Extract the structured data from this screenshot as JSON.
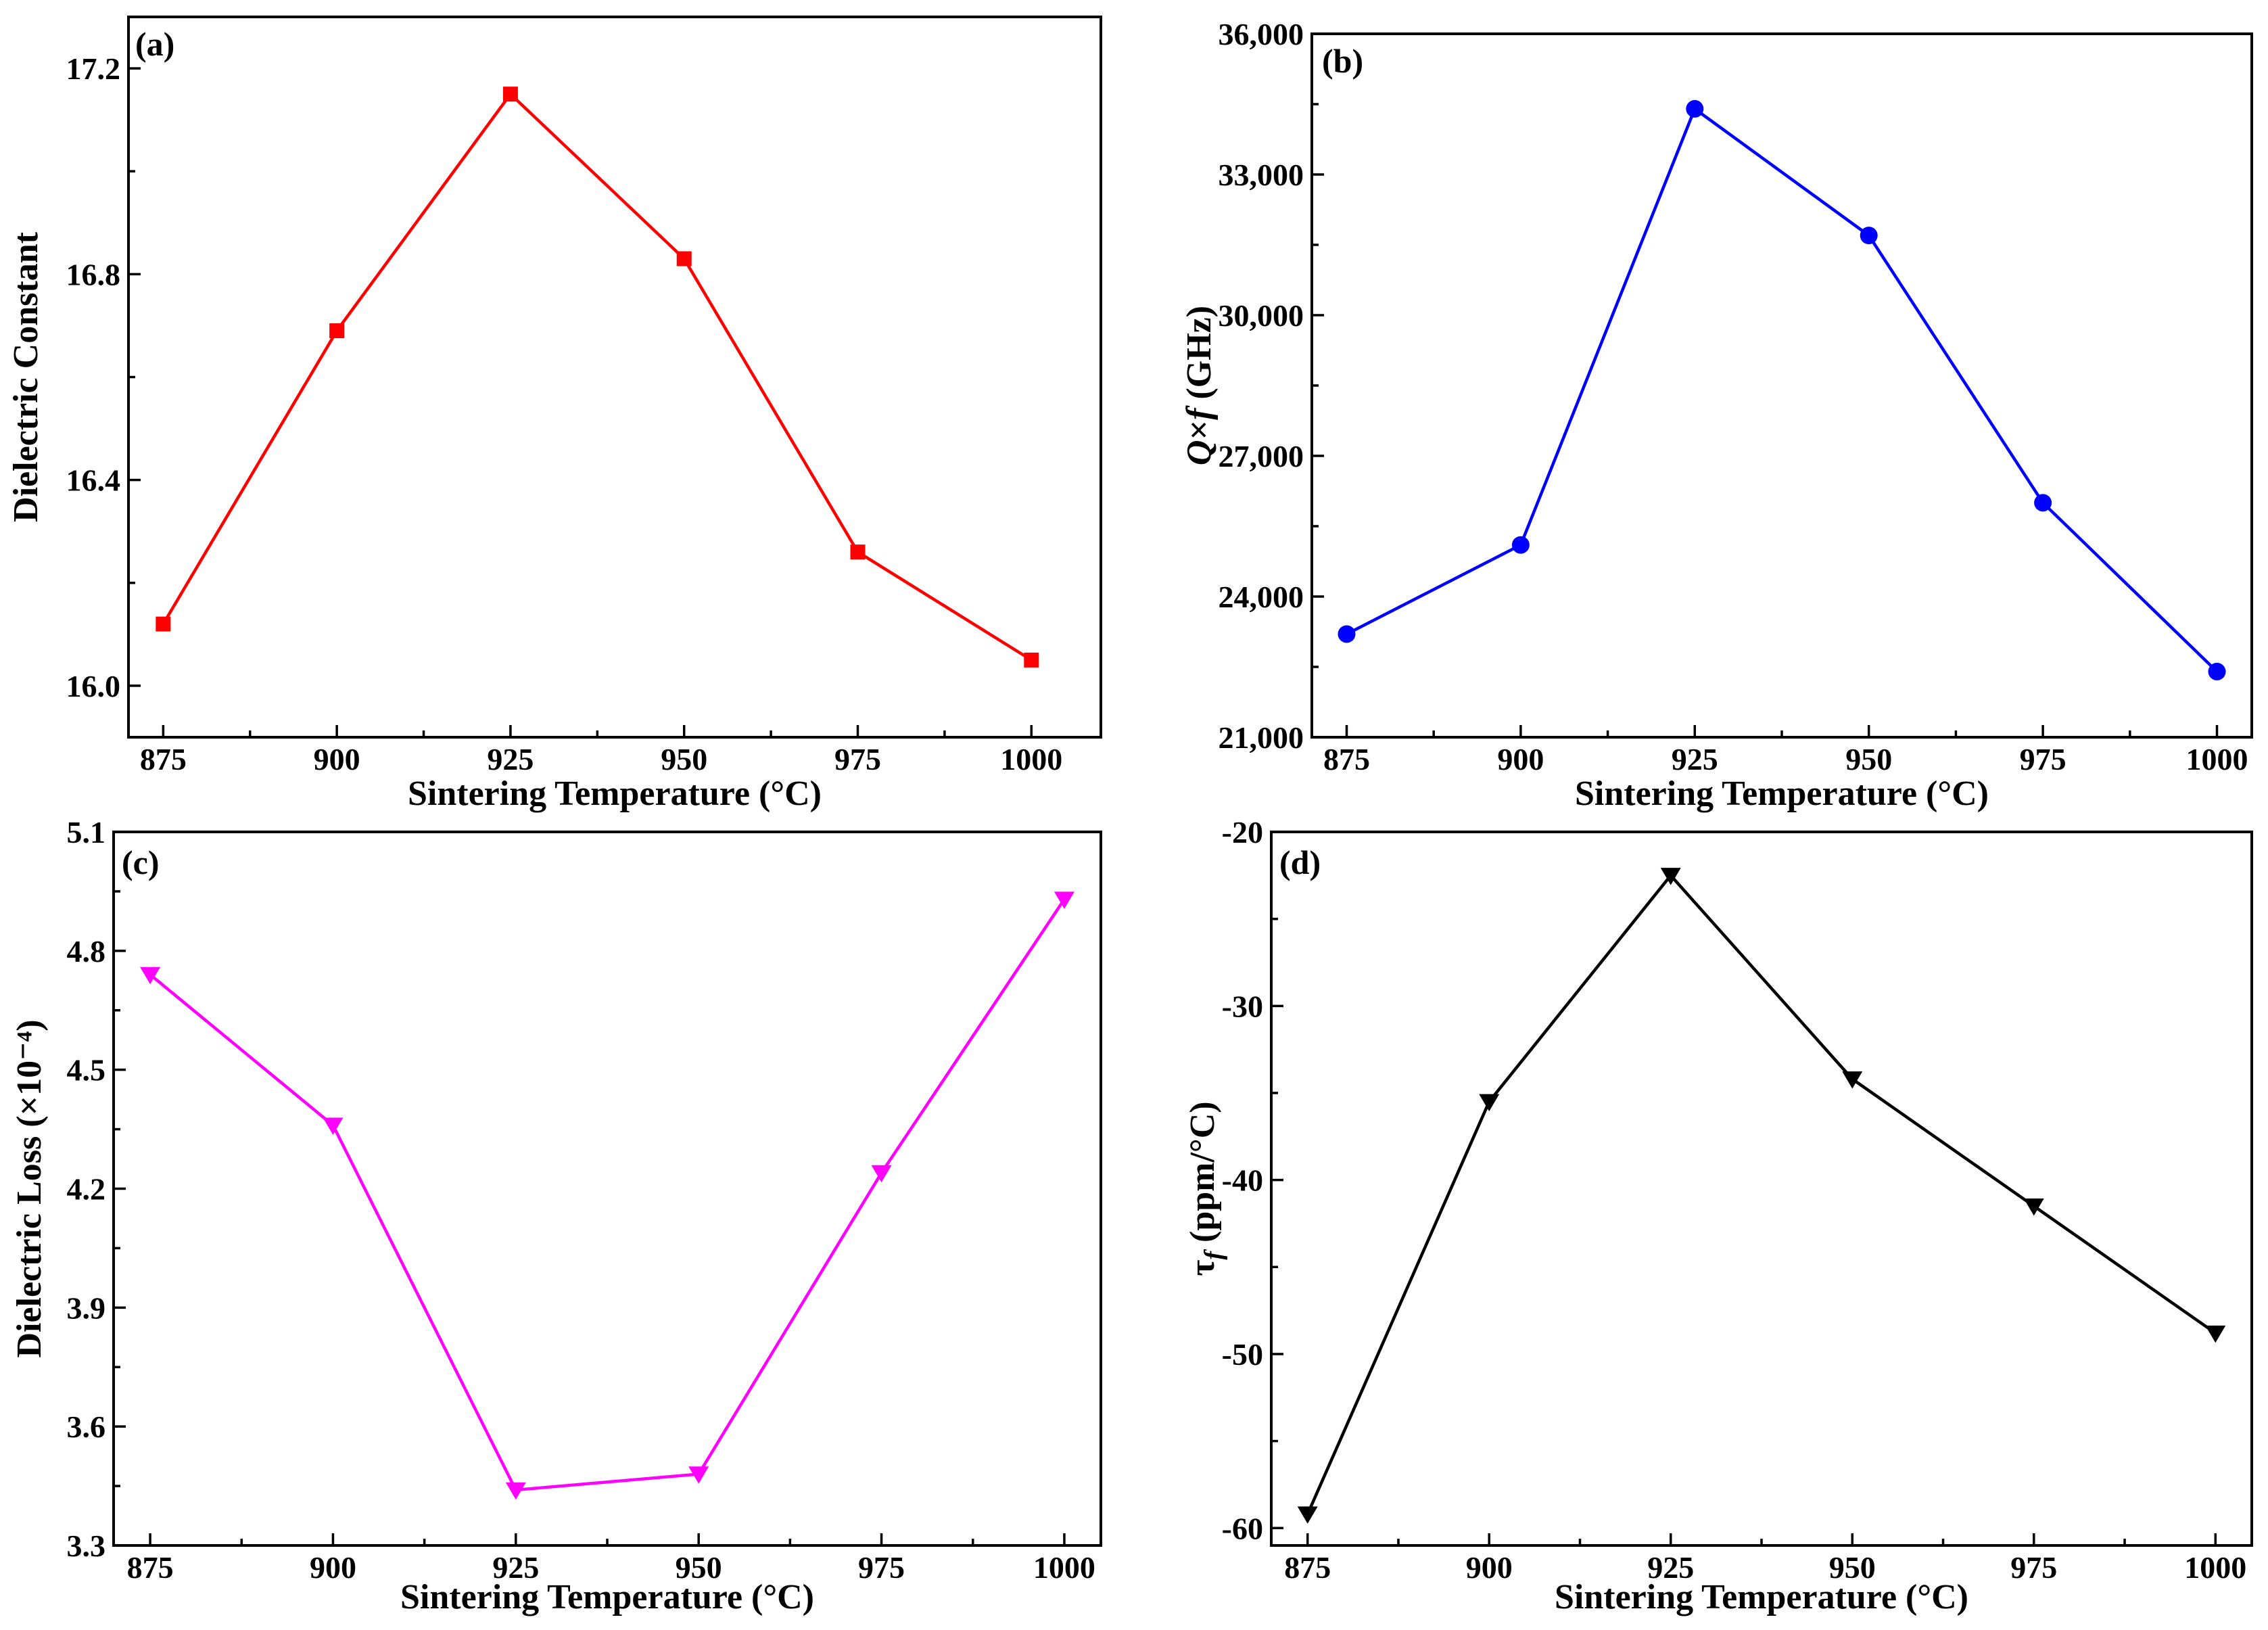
{
  "chart_data": [
    {
      "type": "line",
      "panel_label": "(a)",
      "title": "",
      "xlabel": "Sintering Temperature (°C)",
      "ylabel": "Dielectric Constant",
      "x": [
        875,
        900,
        925,
        950,
        975,
        1000
      ],
      "series": [
        {
          "name": "Dielectric Constant",
          "values": [
            16.12,
            16.69,
            17.15,
            16.83,
            16.26,
            16.05
          ],
          "color": "#ff0000",
          "marker": "square"
        }
      ],
      "xlim": [
        870,
        1010
      ],
      "ylim": [
        15.9,
        17.3
      ],
      "xticks": [
        875,
        900,
        925,
        950,
        975,
        1000
      ],
      "xtick_labels": [
        "875",
        "900",
        "925",
        "950",
        "975",
        "1000"
      ],
      "yticks": [
        16.0,
        16.4,
        16.8,
        17.2
      ],
      "ytick_labels": [
        "16.0",
        "16.4",
        "16.8",
        "17.2"
      ]
    },
    {
      "type": "line",
      "panel_label": "(b)",
      "title": "",
      "xlabel": "Sintering Temperature (°C)",
      "ylabel": "Q×f (GHz)",
      "x": [
        875,
        900,
        925,
        950,
        975,
        1000
      ],
      "series": [
        {
          "name": "Q×f",
          "values": [
            23200,
            25100,
            34400,
            31700,
            26000,
            22400
          ],
          "color": "#0000ff",
          "marker": "circle"
        }
      ],
      "xlim": [
        870,
        1005
      ],
      "ylim": [
        21000,
        36000
      ],
      "xticks": [
        875,
        900,
        925,
        950,
        975,
        1000
      ],
      "xtick_labels": [
        "875",
        "900",
        "925",
        "950",
        "975",
        "1000"
      ],
      "yticks": [
        21000,
        24000,
        27000,
        30000,
        33000,
        36000
      ],
      "ytick_labels": [
        "21,000",
        "24,000",
        "27,000",
        "30,000",
        "33,000",
        "36,000"
      ]
    },
    {
      "type": "line",
      "panel_label": "(c)",
      "title": "",
      "xlabel": "Sintering Temperature (°C)",
      "ylabel": "Dielectric Loss (×10⁻⁴)",
      "x": [
        875,
        900,
        925,
        950,
        975,
        1000
      ],
      "series": [
        {
          "name": "Dielectric Loss",
          "values": [
            4.74,
            4.36,
            3.44,
            3.48,
            4.24,
            4.93
          ],
          "color": "#ff00ff",
          "marker": "triangle-down"
        }
      ],
      "xlim": [
        870,
        1005
      ],
      "ylim": [
        3.3,
        5.1
      ],
      "xticks": [
        875,
        900,
        925,
        950,
        975,
        1000
      ],
      "xtick_labels": [
        "875",
        "900",
        "925",
        "950",
        "975",
        "1000"
      ],
      "yticks": [
        3.3,
        3.6,
        3.9,
        4.2,
        4.5,
        4.8,
        5.1
      ],
      "ytick_labels": [
        "3.3",
        "3.6",
        "3.9",
        "4.2",
        "4.5",
        "4.8",
        "5.1"
      ]
    },
    {
      "type": "line",
      "panel_label": "(d)",
      "title": "",
      "xlabel": "Sintering Temperature (°C)",
      "ylabel": "τf (ppm/°C)",
      "x": [
        875,
        900,
        925,
        950,
        975,
        1000
      ],
      "series": [
        {
          "name": "τf",
          "values": [
            -59.2,
            -35.5,
            -22.5,
            -34.2,
            -41.5,
            -48.8
          ],
          "color": "#000000",
          "marker": "triangle-down"
        }
      ],
      "xlim": [
        870,
        1005
      ],
      "ylim": [
        -61,
        -20
      ],
      "xticks": [
        875,
        900,
        925,
        950,
        975,
        1000
      ],
      "xtick_labels": [
        "875",
        "900",
        "925",
        "950",
        "975",
        "1000"
      ],
      "yticks": [
        -60,
        -50,
        -40,
        -30,
        -20
      ],
      "ytick_labels": [
        "-60",
        "-50",
        "-40",
        "-30",
        "-20"
      ]
    }
  ]
}
